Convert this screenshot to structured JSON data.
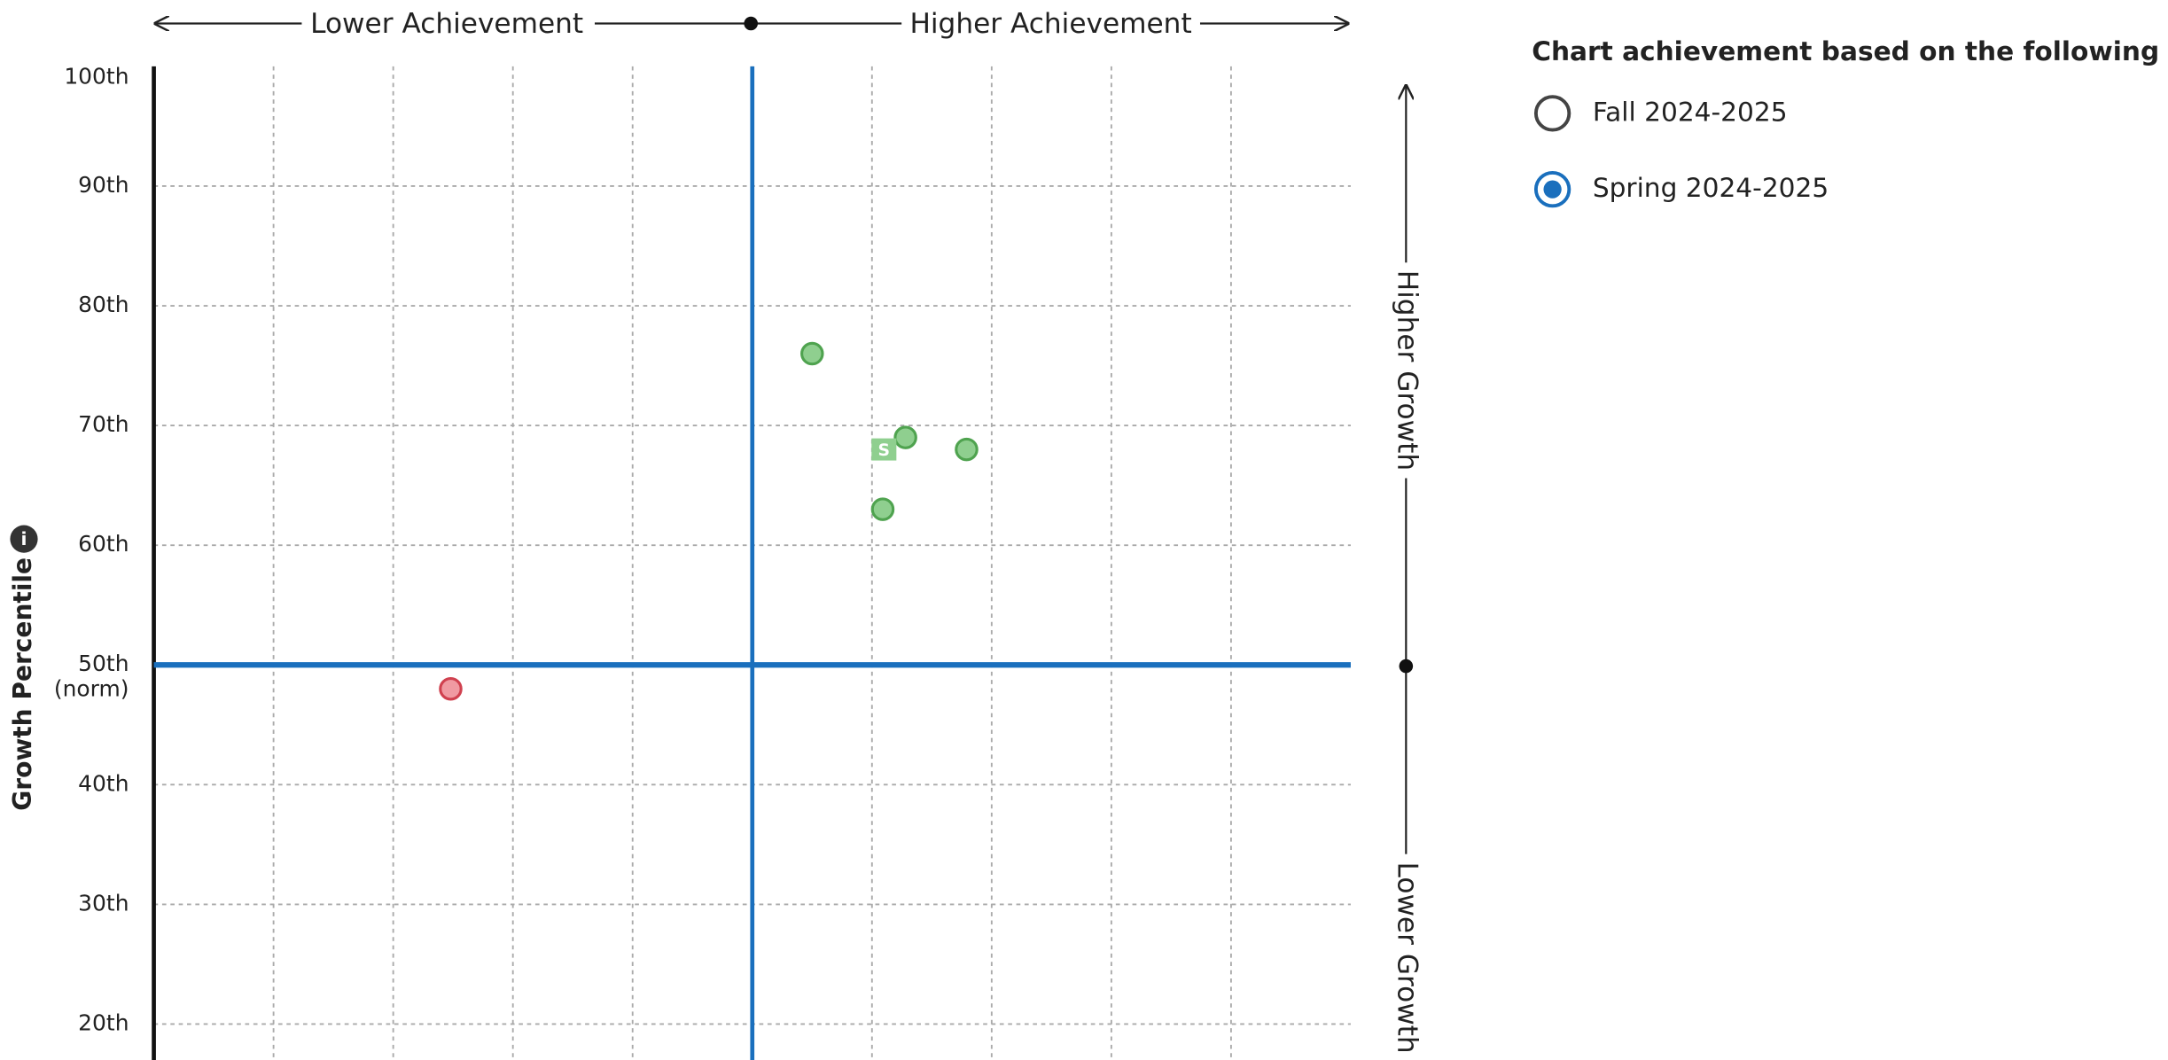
{
  "chart_data": {
    "type": "scatter",
    "top_left_label": "Lower Achievement",
    "top_right_label": "Higher Achievement",
    "right_top_label": "Higher Growth",
    "right_bottom_label": "Lower Growth",
    "ylabel": "Growth Percentile",
    "xlim": [
      0,
      100
    ],
    "xticks": [
      10,
      20,
      30,
      40,
      50,
      60,
      70,
      80,
      90
    ],
    "ylim": [
      17,
      100
    ],
    "yticks": [
      {
        "value": 100,
        "label": "100th"
      },
      {
        "value": 90,
        "label": "90th"
      },
      {
        "value": 80,
        "label": "80th"
      },
      {
        "value": 70,
        "label": "70th"
      },
      {
        "value": 60,
        "label": "60th"
      },
      {
        "value": 50,
        "label": "50th"
      },
      {
        "value": 40,
        "label": "40th"
      },
      {
        "value": 30,
        "label": "30th"
      },
      {
        "value": 20,
        "label": "20th"
      }
    ],
    "norm_label": "(norm)",
    "x_reference": 50,
    "y_reference": 50,
    "reference_color": "#1a6fbd",
    "grid": true,
    "series": [
      {
        "color": "#8fcf8f",
        "stroke": "#4fa34f",
        "marker": "circle",
        "x": [
          55,
          62.8,
          67.9,
          60.9
        ],
        "y": [
          76,
          69,
          68,
          63
        ]
      },
      {
        "color": "#8fcf8f",
        "stroke": "#8fcf8f",
        "marker": "square",
        "marker_label": "S",
        "x": [
          61
        ],
        "y": [
          68
        ]
      },
      {
        "color": "#f09aa2",
        "stroke": "#d0414f",
        "marker": "circle",
        "x": [
          24.8
        ],
        "y": [
          48
        ]
      }
    ]
  },
  "term_selector": {
    "title": "Chart achievement based on the following term",
    "options": [
      {
        "label": "Fall 2024-2025",
        "selected": false
      },
      {
        "label": "Spring 2024-2025",
        "selected": true
      }
    ]
  }
}
